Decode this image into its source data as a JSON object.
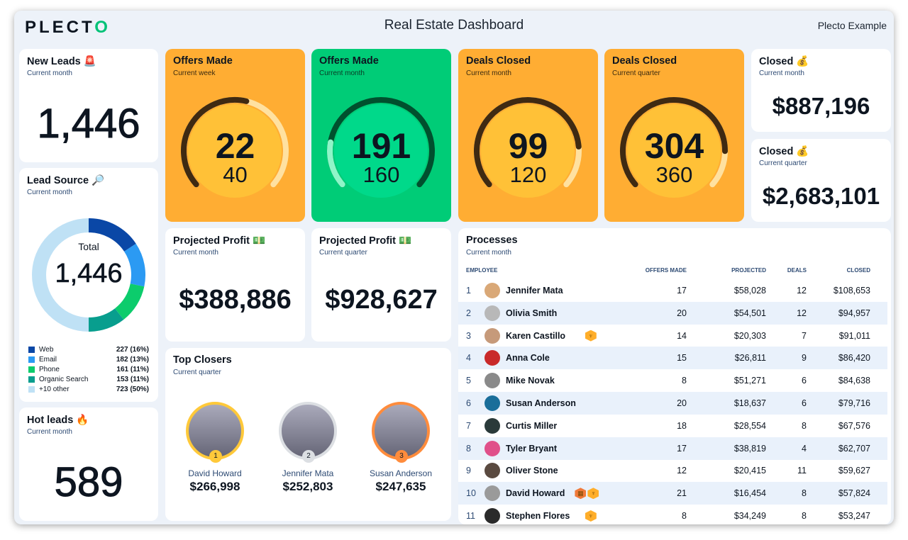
{
  "header": {
    "logo": "PLECTO",
    "title": "Real Estate Dashboard",
    "org": "Plecto Example"
  },
  "new_leads": {
    "title": "New Leads 🚨",
    "period": "Current month",
    "value": "1,446"
  },
  "lead_source": {
    "title": "Lead Source 🔎",
    "period": "Current month",
    "total_label": "Total",
    "total": "1,446",
    "items": [
      {
        "label": "Web",
        "value": "227 (16%)",
        "count": 227,
        "color": "#0a47a6"
      },
      {
        "label": "Email",
        "value": "182 (13%)",
        "count": 182,
        "color": "#2b9af3"
      },
      {
        "label": "Phone",
        "value": "161 (11%)",
        "count": 161,
        "color": "#0ccc6c"
      },
      {
        "label": "Organic Search",
        "value": "153 (11%)",
        "count": 153,
        "color": "#089e8e"
      },
      {
        "label": "+10 other",
        "value": "723 (50%)",
        "count": 723,
        "color": "#bfe1f5"
      }
    ]
  },
  "hot_leads": {
    "title": "Hot leads 🔥",
    "period": "Current month",
    "value": "589"
  },
  "gauges": [
    {
      "title": "Offers Made",
      "period": "Current week",
      "value": "22",
      "target": "40",
      "v": 22,
      "t": 40,
      "theme": "orange"
    },
    {
      "title": "Offers Made",
      "period": "Current month",
      "value": "191",
      "target": "160",
      "v": 191,
      "t": 160,
      "theme": "green"
    },
    {
      "title": "Deals Closed",
      "period": "Current month",
      "value": "99",
      "target": "120",
      "v": 99,
      "t": 120,
      "theme": "orange"
    },
    {
      "title": "Deals Closed",
      "period": "Current quarter",
      "value": "304",
      "target": "360",
      "v": 304,
      "t": 360,
      "theme": "orange"
    }
  ],
  "closed": [
    {
      "title": "Closed 💰",
      "period": "Current month",
      "value": "$887,196"
    },
    {
      "title": "Closed 💰",
      "period": "Current quarter",
      "value": "$2,683,101"
    }
  ],
  "projected": [
    {
      "title": "Projected Profit 💵",
      "period": "Current month",
      "value": "$388,886"
    },
    {
      "title": "Projected Profit 💵",
      "period": "Current quarter",
      "value": "$928,627"
    }
  ],
  "top_closers": {
    "title": "Top Closers",
    "period": "Current quarter",
    "people": [
      {
        "rank": "1",
        "name": "David Howard",
        "value": "$266,998",
        "ring": "#ffc93a"
      },
      {
        "rank": "2",
        "name": "Jennifer Mata",
        "value": "$252,803",
        "ring": "#dcdfe3"
      },
      {
        "rank": "3",
        "name": "Susan Anderson",
        "value": "$247,635",
        "ring": "#ff8c3c"
      }
    ]
  },
  "processes": {
    "title": "Processes",
    "period": "Current month",
    "columns": [
      "EMPLOYEE",
      "OFFERS MADE",
      "PROJECTED",
      "DEALS",
      "CLOSED"
    ],
    "rows": [
      {
        "rank": "1",
        "name": "Jennifer Mata",
        "offers": "17",
        "projected": "$58,028",
        "deals": "12",
        "closed": "$108,653",
        "badges": [],
        "avatar": "#d9a877"
      },
      {
        "rank": "2",
        "name": "Olivia Smith",
        "offers": "20",
        "projected": "$54,501",
        "deals": "12",
        "closed": "$94,957",
        "badges": [],
        "avatar": "#b8b8b8"
      },
      {
        "rank": "3",
        "name": "Karen Castillo",
        "offers": "14",
        "projected": "$20,303",
        "deals": "7",
        "closed": "$91,011",
        "badges": [
          "trophy"
        ],
        "avatar": "#c69a7a"
      },
      {
        "rank": "4",
        "name": "Anna Cole",
        "offers": "15",
        "projected": "$26,811",
        "deals": "9",
        "closed": "$86,420",
        "badges": [],
        "avatar": "#c92a2a"
      },
      {
        "rank": "5",
        "name": "Mike Novak",
        "offers": "8",
        "projected": "$51,271",
        "deals": "6",
        "closed": "$84,638",
        "badges": [],
        "avatar": "#8a8a8a"
      },
      {
        "rank": "6",
        "name": "Susan Anderson",
        "offers": "20",
        "projected": "$18,637",
        "deals": "6",
        "closed": "$79,716",
        "badges": [],
        "avatar": "#1a6e9a"
      },
      {
        "rank": "7",
        "name": "Curtis Miller",
        "offers": "18",
        "projected": "$28,554",
        "deals": "8",
        "closed": "$67,576",
        "badges": [],
        "avatar": "#2a3a3a"
      },
      {
        "rank": "8",
        "name": "Tyler Bryant",
        "offers": "17",
        "projected": "$38,819",
        "deals": "4",
        "closed": "$62,707",
        "badges": [],
        "avatar": "#e0508a"
      },
      {
        "rank": "9",
        "name": "Oliver Stone",
        "offers": "12",
        "projected": "$20,415",
        "deals": "11",
        "closed": "$59,627",
        "badges": [],
        "avatar": "#5a4a40"
      },
      {
        "rank": "10",
        "name": "David Howard",
        "offers": "21",
        "projected": "$16,454",
        "deals": "8",
        "closed": "$57,824",
        "badges": [
          "cake",
          "trophy"
        ],
        "avatar": "#9a9a9a"
      },
      {
        "rank": "11",
        "name": "Stephen Flores",
        "offers": "8",
        "projected": "$34,249",
        "deals": "8",
        "closed": "$53,247",
        "badges": [
          "trophy"
        ],
        "avatar": "#2a2a2a"
      }
    ]
  }
}
